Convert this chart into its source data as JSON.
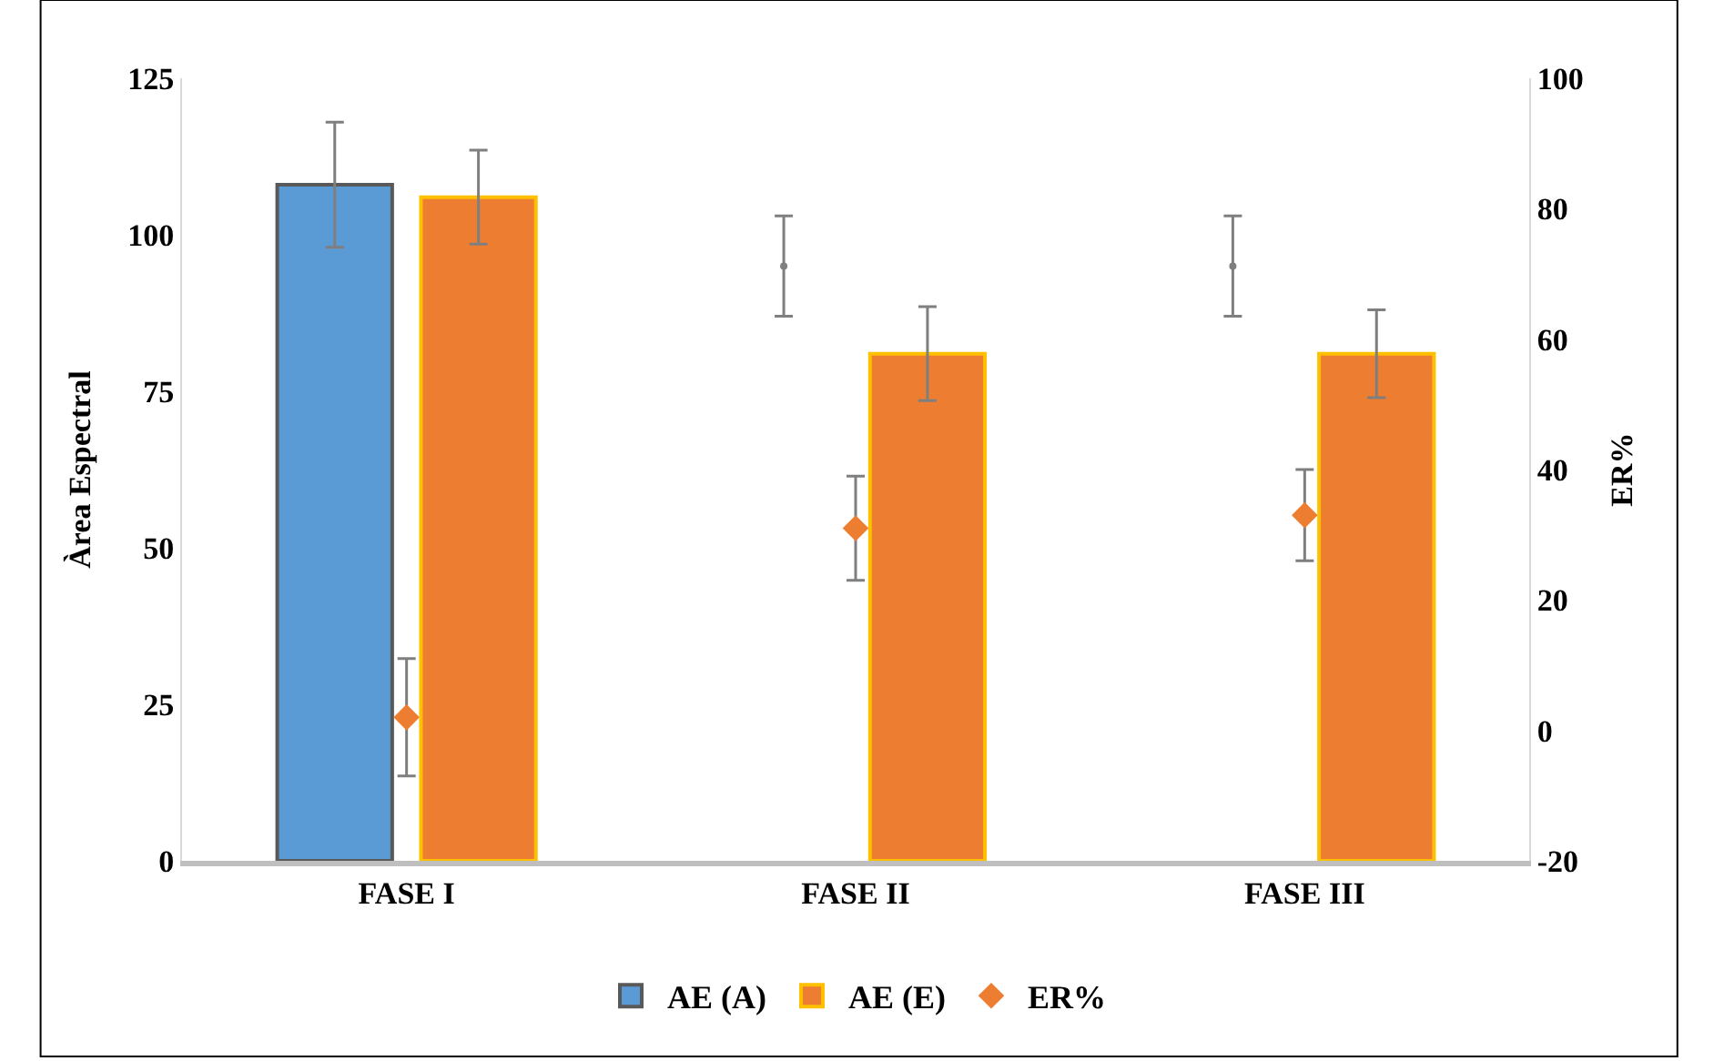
{
  "chart_data": {
    "type": "bar",
    "ylabel": "Àrea Espectral",
    "y2label": "ER%",
    "categories": [
      "FASE I",
      "FASE II",
      "FASE III"
    ],
    "series": [
      {
        "name": "AE (A)",
        "color": "#5b9bd5",
        "values": [
          108,
          null,
          null
        ],
        "errors": [
          10,
          null,
          null
        ]
      },
      {
        "name": "AE (E)",
        "color": "#ed7d31",
        "values": [
          106,
          81,
          81
        ],
        "errors": [
          7.5,
          7.5,
          7
        ]
      },
      {
        "type": "scatter",
        "marker": "circle",
        "color": "#7f7f7f",
        "values": [
          null,
          95,
          95
        ],
        "errors": [
          null,
          8,
          8
        ]
      },
      {
        "name": "ER%",
        "type": "scatter",
        "axis": "y2",
        "marker": "diamond",
        "color": "#ed7d31",
        "values": [
          2,
          31,
          33
        ],
        "errors": [
          9,
          8,
          7
        ]
      }
    ],
    "ylim": [
      0,
      125
    ],
    "yticks": [
      0,
      25,
      50,
      75,
      100,
      125
    ],
    "y2lim": [
      -20,
      100
    ],
    "y2ticks": [
      -20,
      0,
      20,
      40,
      60,
      80,
      100
    ],
    "legend": "bottom"
  }
}
